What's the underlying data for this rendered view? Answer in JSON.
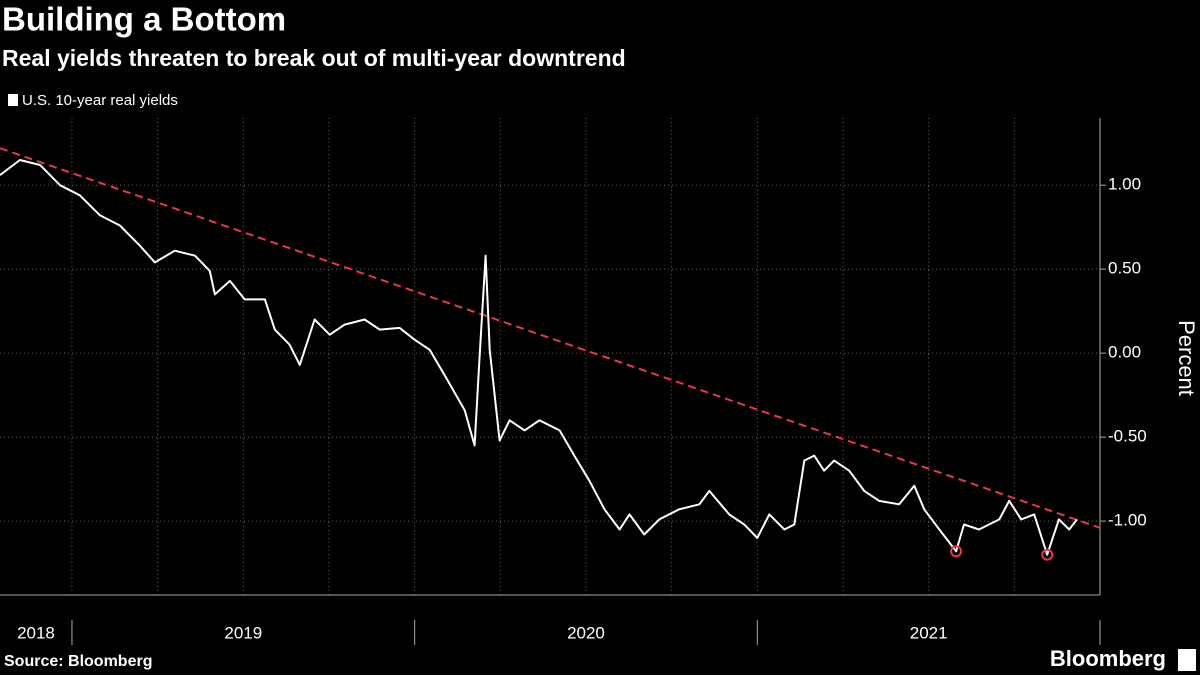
{
  "chart_data": {
    "type": "line",
    "title": "Building a Bottom",
    "subtitle": "Real yields threaten to break out of multi-year downtrend",
    "y_label": "Percent",
    "source": "Source: Bloomberg",
    "brand": "Bloomberg",
    "series": [
      {
        "name": "U.S. 10-year real yields",
        "color": "#ffffff",
        "x": [
          2018.79,
          2018.848,
          2018.907,
          2018.965,
          2019.023,
          2019.082,
          2019.14,
          2019.198,
          2019.242,
          2019.3,
          2019.359,
          2019.402,
          2019.417,
          2019.461,
          2019.504,
          2019.563,
          2019.592,
          2019.635,
          2019.665,
          2019.708,
          2019.752,
          2019.796,
          2019.854,
          2019.898,
          2019.956,
          2020.0,
          2020.044,
          2020.087,
          2020.146,
          2020.175,
          2020.189,
          2020.207,
          2020.219,
          2020.248,
          2020.277,
          2020.321,
          2020.364,
          2020.423,
          2020.466,
          2020.51,
          2020.554,
          2020.598,
          2020.627,
          2020.67,
          2020.714,
          2020.772,
          2020.831,
          2020.86,
          2020.918,
          2020.962,
          2021.0,
          2021.035,
          2021.079,
          2021.108,
          2021.137,
          2021.166,
          2021.195,
          2021.224,
          2021.268,
          2021.312,
          2021.356,
          2021.414,
          2021.458,
          2021.487,
          2021.531,
          2021.58,
          2021.603,
          2021.647,
          2021.706,
          2021.735,
          2021.77,
          2021.808,
          2021.846,
          2021.88,
          2021.91,
          2021.933
        ],
        "values": [
          1.06,
          1.15,
          1.12,
          1.0,
          0.94,
          0.82,
          0.76,
          0.64,
          0.54,
          0.61,
          0.58,
          0.49,
          0.35,
          0.43,
          0.32,
          0.32,
          0.14,
          0.05,
          -0.07,
          0.2,
          0.11,
          0.17,
          0.2,
          0.14,
          0.15,
          0.08,
          0.02,
          -0.13,
          -0.34,
          -0.55,
          -0.04,
          0.58,
          0.02,
          -0.52,
          -0.4,
          -0.46,
          -0.4,
          -0.46,
          -0.61,
          -0.76,
          -0.93,
          -1.05,
          -0.96,
          -1.08,
          -0.99,
          -0.93,
          -0.9,
          -0.82,
          -0.96,
          -1.02,
          -1.1,
          -0.96,
          -1.05,
          -1.02,
          -0.64,
          -0.61,
          -0.7,
          -0.64,
          -0.7,
          -0.82,
          -0.88,
          -0.9,
          -0.79,
          -0.93,
          -1.05,
          -1.18,
          -1.02,
          -1.05,
          -0.99,
          -0.88,
          -0.99,
          -0.96,
          -1.2,
          -0.99,
          -1.05,
          -0.99
        ]
      }
    ],
    "trendline": {
      "color": "#e8374b",
      "x": [
        2018.79,
        2022.0
      ],
      "values": [
        1.22,
        -1.04
      ]
    },
    "highlights": {
      "color": "#e8374b",
      "x": [
        2021.58,
        2021.846
      ],
      "values": [
        -1.18,
        -1.2
      ]
    },
    "xlim": [
      2018.79,
      2022.0
    ],
    "ylim": [
      -1.44,
      1.4
    ],
    "yticks": [
      {
        "value": 1,
        "label": "1.00"
      },
      {
        "value": 0.5,
        "label": "0.50"
      },
      {
        "value": 0,
        "label": "0.00"
      },
      {
        "value": -0.5,
        "label": "-0.50"
      },
      {
        "value": -1,
        "label": "-1.00"
      }
    ],
    "xticks": [
      {
        "value": 2018.895,
        "label": "2018"
      },
      {
        "value": 2019.5,
        "label": "2019"
      },
      {
        "value": 2020.5,
        "label": "2020"
      },
      {
        "value": 2021.5,
        "label": "2021"
      }
    ],
    "xgrid": [
      2019,
      2019.25,
      2019.5,
      2019.75,
      2020,
      2020.25,
      2020.5,
      2020.75,
      2021,
      2021.25,
      2021.5,
      2021.75,
      2022
    ],
    "grid": true
  }
}
